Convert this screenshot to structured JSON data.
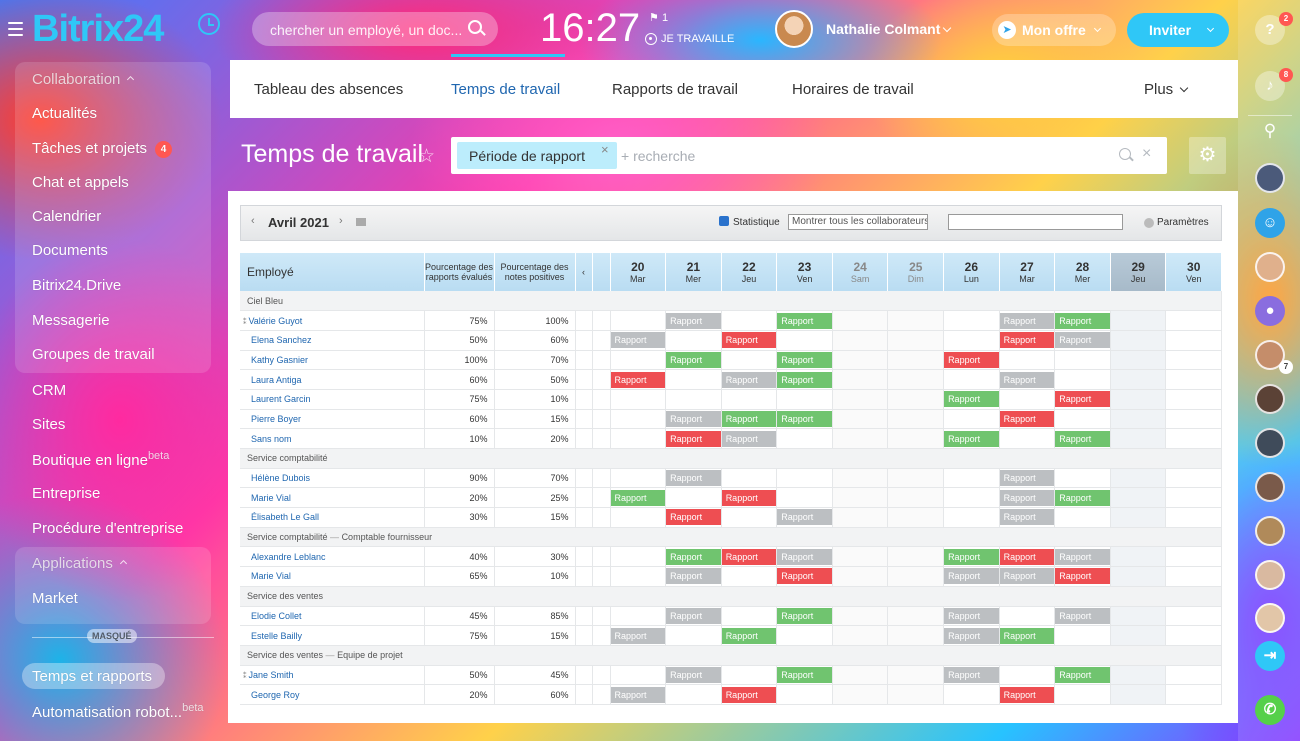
{
  "header": {
    "logo": "Bitrix24",
    "search_placeholder": "chercher un employé, un doc...",
    "clock": "16:27",
    "flag_count": "1",
    "work_status": "JE TRAVAILLE",
    "user_name": "Nathalie Colmant",
    "offer_label": "Mon offre",
    "invite_label": "Inviter"
  },
  "sidebar": {
    "collab_head": "Collaboration",
    "items": [
      "Actualités",
      "Tâches et projets",
      "Chat et appels",
      "Calendrier",
      "Documents",
      "Bitrix24.Drive",
      "Messagerie",
      "Groupes de travail",
      "CRM",
      "Sites",
      "Boutique en ligne",
      "Entreprise",
      "Procédure d'entreprise"
    ],
    "tasks_badge": "4",
    "boutique_sup": "beta",
    "apps_head": "Applications",
    "market": "Market",
    "hidden_label": "MASQUÉ",
    "time_reports": "Temps et rapports",
    "automation": "Automatisation robot...",
    "automation_sup": "beta"
  },
  "tabs": {
    "t1": "Tableau des absences",
    "t2": "Temps de travail",
    "t3": "Rapports de travail",
    "t4": "Horaires de travail",
    "more": "Plus"
  },
  "page": {
    "title": "Temps de travail",
    "filter_tag": "Période de rapport",
    "filter_search": "+ recherche"
  },
  "report": {
    "month": "Avril 2021",
    "statistic": "Statistique",
    "select_label": "Montrer tous les collaborateurs",
    "params": "Paramètres",
    "col_employee": "Employé",
    "col_rated": "Pourcentage des rapports évalués",
    "col_positive": "Pourcentage des notes positives",
    "days": [
      {
        "n": "20",
        "d": "Mar"
      },
      {
        "n": "21",
        "d": "Mer"
      },
      {
        "n": "22",
        "d": "Jeu"
      },
      {
        "n": "23",
        "d": "Ven"
      },
      {
        "n": "24",
        "d": "Sam"
      },
      {
        "n": "25",
        "d": "Dim"
      },
      {
        "n": "26",
        "d": "Lun"
      },
      {
        "n": "27",
        "d": "Mar"
      },
      {
        "n": "28",
        "d": "Mer"
      },
      {
        "n": "29",
        "d": "Jeu"
      },
      {
        "n": "30",
        "d": "Ven"
      }
    ],
    "cell_label": "Rapport",
    "groups": [
      {
        "label": "Ciel Bleu",
        "sub": "",
        "rows": [
          {
            "name": "Valérie Guyot",
            "lead": true,
            "rated": "75%",
            "positive": "100%",
            "cells": [
              "",
              "grey",
              "",
              "green",
              "",
              "",
              "",
              "grey",
              "green",
              "",
              ""
            ]
          },
          {
            "name": "Elena Sanchez",
            "lead": false,
            "rated": "50%",
            "positive": "60%",
            "cells": [
              "grey",
              "",
              "red",
              "",
              "",
              "",
              "",
              "red",
              "grey",
              "",
              ""
            ]
          },
          {
            "name": "Kathy Gasnier",
            "lead": false,
            "rated": "100%",
            "positive": "70%",
            "cells": [
              "",
              "green",
              "",
              "green",
              "",
              "",
              "red",
              "",
              "",
              "",
              ""
            ]
          },
          {
            "name": "Laura Antiga",
            "lead": false,
            "rated": "60%",
            "positive": "50%",
            "cells": [
              "red",
              "",
              "grey",
              "green",
              "",
              "",
              "",
              "grey",
              "",
              "",
              ""
            ]
          },
          {
            "name": "Laurent Garcin",
            "lead": false,
            "rated": "75%",
            "positive": "10%",
            "cells": [
              "",
              "",
              "",
              "",
              "",
              "",
              "green",
              "",
              "red",
              "",
              ""
            ]
          },
          {
            "name": "Pierre Boyer",
            "lead": false,
            "rated": "60%",
            "positive": "15%",
            "cells": [
              "",
              "grey",
              "green",
              "green",
              "",
              "",
              "",
              "red",
              "",
              "",
              ""
            ]
          },
          {
            "name": "Sans nom",
            "lead": false,
            "rated": "10%",
            "positive": "20%",
            "cells": [
              "",
              "red",
              "grey",
              "",
              "",
              "",
              "green",
              "",
              "green",
              "",
              ""
            ]
          }
        ]
      },
      {
        "label": "Service comptabilité",
        "sub": "",
        "rows": [
          {
            "name": "Hélène Dubois",
            "lead": false,
            "rated": "90%",
            "positive": "70%",
            "cells": [
              "",
              "grey",
              "",
              "",
              "",
              "",
              "",
              "grey",
              "",
              "",
              ""
            ]
          },
          {
            "name": "Marie Vial",
            "lead": false,
            "rated": "20%",
            "positive": "25%",
            "cells": [
              "green",
              "",
              "red",
              "",
              "",
              "",
              "",
              "grey",
              "green",
              "",
              ""
            ]
          },
          {
            "name": "Élisabeth Le Gall",
            "lead": false,
            "rated": "30%",
            "positive": "15%",
            "cells": [
              "",
              "red",
              "",
              "grey",
              "",
              "",
              "",
              "grey",
              "",
              "",
              ""
            ]
          }
        ]
      },
      {
        "label": "Service comptabilité",
        "sub": "Comptable fournisseur",
        "rows": [
          {
            "name": "Alexandre Leblanc",
            "lead": false,
            "rated": "40%",
            "positive": "30%",
            "cells": [
              "",
              "green",
              "red",
              "grey",
              "",
              "",
              "green",
              "red",
              "grey",
              "",
              ""
            ]
          },
          {
            "name": "Marie Vial",
            "lead": false,
            "rated": "65%",
            "positive": "10%",
            "cells": [
              "",
              "grey",
              "",
              "red",
              "",
              "",
              "grey",
              "grey",
              "red",
              "",
              ""
            ]
          }
        ]
      },
      {
        "label": "Service des ventes",
        "sub": "",
        "rows": [
          {
            "name": "Elodie Collet",
            "lead": false,
            "rated": "45%",
            "positive": "85%",
            "cells": [
              "",
              "grey",
              "",
              "green",
              "",
              "",
              "grey",
              "",
              "grey",
              "",
              ""
            ]
          },
          {
            "name": "Estelle Bailly",
            "lead": false,
            "rated": "75%",
            "positive": "15%",
            "cells": [
              "grey",
              "",
              "green",
              "",
              "",
              "",
              "grey",
              "green",
              "",
              "",
              ""
            ]
          }
        ]
      },
      {
        "label": "Service des ventes",
        "sub": "Equipe de projet",
        "rows": [
          {
            "name": "Jane Smith",
            "lead": true,
            "rated": "50%",
            "positive": "45%",
            "cells": [
              "",
              "grey",
              "",
              "green",
              "",
              "",
              "grey",
              "",
              "green",
              "",
              ""
            ]
          },
          {
            "name": "George Roy",
            "lead": false,
            "rated": "20%",
            "positive": "60%",
            "cells": [
              "grey",
              "",
              "red",
              "",
              "",
              "",
              "",
              "red",
              "",
              "",
              ""
            ]
          }
        ]
      }
    ]
  },
  "rightbar": {
    "help_badge": "2",
    "bell_badge": "8",
    "avatar_badge": "7"
  },
  "colors": {
    "accent": "#2fc7f7",
    "green": "#70c46f",
    "red": "#ee4e52",
    "grey": "#bcbfc2"
  }
}
